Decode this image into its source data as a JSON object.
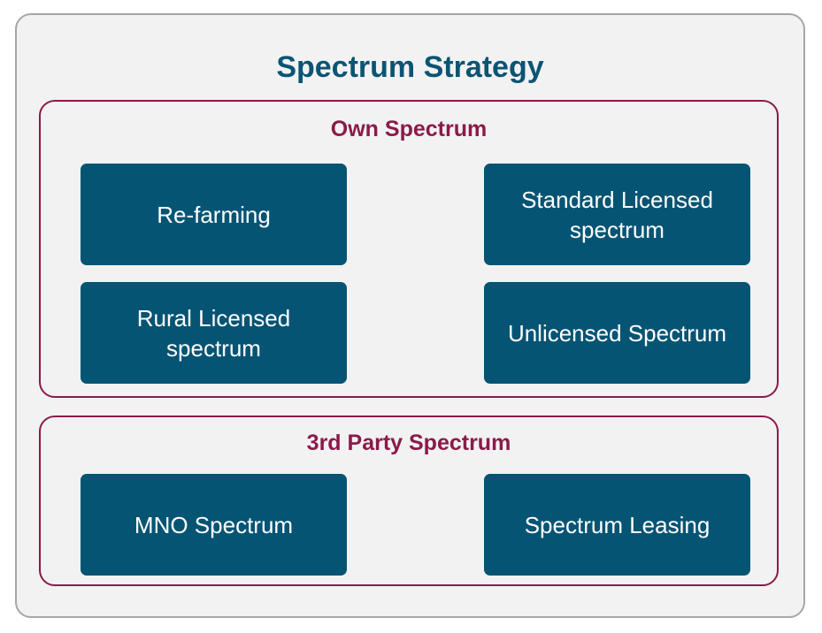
{
  "title": "Spectrum Strategy",
  "colors": {
    "title": "#0b5474",
    "group_title": "#8b1a4a",
    "box_fill": "#065474",
    "box_text": "#ffffff",
    "outer_fill": "#f2f2f2",
    "group_border": "#8b1a4a"
  },
  "groups": [
    {
      "title": "Own Spectrum",
      "items": [
        "Re-farming",
        "Standard Licensed spectrum",
        "Rural Licensed spectrum",
        "Unlicensed Spectrum"
      ]
    },
    {
      "title": "3rd Party Spectrum",
      "items": [
        "MNO Spectrum",
        "Spectrum Leasing"
      ]
    }
  ]
}
